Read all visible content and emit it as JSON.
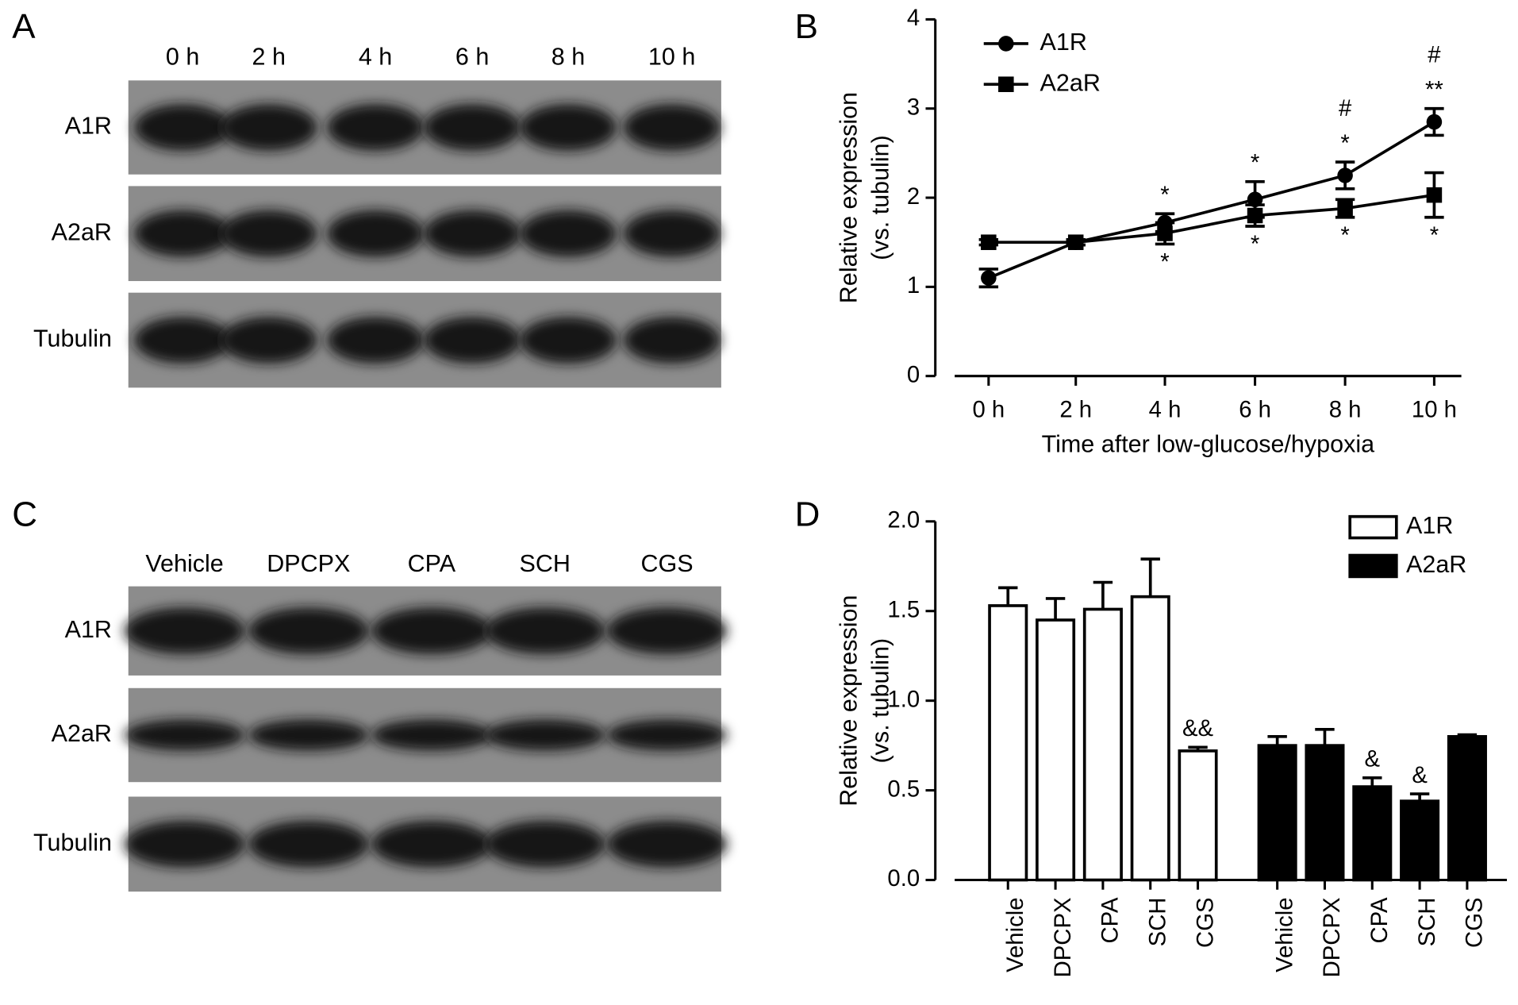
{
  "panels": [
    {
      "letter": "A",
      "lanes": [
        "0 h",
        "2 h",
        "4 h",
        "6 h",
        "8 h",
        "10 h"
      ],
      "rows": [
        "A1R",
        "A2aR",
        "Tubulin"
      ]
    },
    {
      "letter": "C",
      "lanes": [
        "Vehicle",
        "DPCPX",
        "CPA",
        "SCH",
        "CGS"
      ],
      "rows": [
        "A1R",
        "A2aR",
        "Tubulin"
      ]
    }
  ],
  "chart_data": [
    {
      "letter": "B",
      "type": "line",
      "categories": [
        "0 h",
        "2 h",
        "4 h",
        "6 h",
        "8 h",
        "10 h"
      ],
      "series": [
        {
          "name": "A1R",
          "color": "#000000",
          "marker": "circle",
          "values": [
            1.1,
            1.5,
            1.72,
            1.98,
            2.25,
            2.85
          ],
          "errors": [
            0.1,
            0.03,
            0.1,
            0.2,
            0.15,
            0.15
          ],
          "annotations": [
            null,
            null,
            [
              "*"
            ],
            [
              "*"
            ],
            [
              "#",
              "*"
            ],
            [
              "#",
              "**"
            ]
          ]
        },
        {
          "name": "A2aR",
          "color": "#000000",
          "marker": "square",
          "values": [
            1.5,
            1.5,
            1.6,
            1.8,
            1.88,
            2.03
          ],
          "errors": [
            0.03,
            0.03,
            0.12,
            0.12,
            0.1,
            0.25
          ],
          "annotations": [
            null,
            null,
            [
              "*"
            ],
            [
              "*"
            ],
            [
              "*"
            ],
            [
              "*"
            ]
          ]
        }
      ],
      "ylim": [
        0,
        4
      ],
      "yticks": [
        0,
        1,
        2,
        3,
        4
      ],
      "xlabel": "Time after low-glucose/hypoxia",
      "ylabel": [
        "Relative expression",
        "(vs. tubulin)"
      ],
      "legend": "top-left"
    },
    {
      "letter": "D",
      "type": "bar",
      "categories": [
        "Vehicle",
        "DPCPX",
        "CPA",
        "SCH",
        "CGS"
      ],
      "series": [
        {
          "name": "A1R",
          "color": "#ffffff",
          "values": [
            1.53,
            1.45,
            1.51,
            1.58,
            0.72
          ],
          "errors": [
            0.1,
            0.12,
            0.15,
            0.21,
            0.02
          ],
          "annotations": [
            null,
            null,
            null,
            null,
            [
              "&&"
            ]
          ]
        },
        {
          "name": "A2aR",
          "color": "#000000",
          "values": [
            0.75,
            0.75,
            0.52,
            0.44,
            0.8
          ],
          "errors": [
            0.05,
            0.09,
            0.05,
            0.04,
            0.01
          ],
          "annotations": [
            null,
            null,
            [
              "&"
            ],
            [
              "&"
            ],
            null
          ]
        }
      ],
      "ylim": [
        0,
        2
      ],
      "yticks": [
        {
          "value": 0,
          "label": "0.0"
        },
        0.5,
        {
          "value": 1,
          "label": "1.0"
        },
        1.5,
        {
          "value": 2,
          "label": "2.0"
        }
      ],
      "ylabel": [
        "Relative expression",
        "(vs. tubulin)"
      ],
      "legend": "top-right"
    }
  ]
}
